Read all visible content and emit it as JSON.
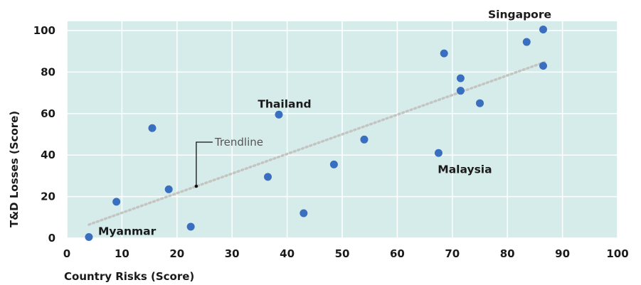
{
  "chart_data": {
    "type": "scatter",
    "title": "",
    "xlabel": "Country Risks (Score)",
    "ylabel": "T&D Losses (Score)",
    "xlim": [
      0,
      100
    ],
    "ylim": [
      0,
      100
    ],
    "xticks": [
      0,
      10,
      20,
      30,
      40,
      50,
      60,
      70,
      80,
      90,
      100
    ],
    "yticks": [
      0,
      20,
      40,
      60,
      80,
      100
    ],
    "grid": true,
    "colors": {
      "plot_background": "#d6ecea",
      "grid": "#ffffff",
      "points": "#3a6fbf",
      "trendline": "#c4c4c0"
    },
    "points": [
      {
        "x": 4,
        "y": 0.5,
        "label": "Myanmar"
      },
      {
        "x": 9,
        "y": 17.5,
        "label": ""
      },
      {
        "x": 15.5,
        "y": 53,
        "label": ""
      },
      {
        "x": 18.5,
        "y": 23.5,
        "label": ""
      },
      {
        "x": 22.5,
        "y": 5.5,
        "label": ""
      },
      {
        "x": 36.5,
        "y": 29.5,
        "label": ""
      },
      {
        "x": 38.5,
        "y": 59.5,
        "label": "Thailand"
      },
      {
        "x": 43,
        "y": 12,
        "label": ""
      },
      {
        "x": 48.5,
        "y": 35.5,
        "label": ""
      },
      {
        "x": 54,
        "y": 47.5,
        "label": ""
      },
      {
        "x": 67.5,
        "y": 41,
        "label": "Malaysia"
      },
      {
        "x": 68.5,
        "y": 89,
        "label": ""
      },
      {
        "x": 71.5,
        "y": 77,
        "label": ""
      },
      {
        "x": 71.5,
        "y": 71,
        "label": ""
      },
      {
        "x": 75,
        "y": 65,
        "label": ""
      },
      {
        "x": 83.5,
        "y": 94.5,
        "label": ""
      },
      {
        "x": 86.5,
        "y": 100.5,
        "label": "Singapore"
      },
      {
        "x": 86.5,
        "y": 83,
        "label": ""
      }
    ],
    "trendline": {
      "label": "Trendline",
      "start": {
        "x": 4,
        "y": 6.5
      },
      "end": {
        "x": 87,
        "y": 85
      },
      "annotation_point": {
        "x": 23.5,
        "y": 25
      }
    }
  }
}
